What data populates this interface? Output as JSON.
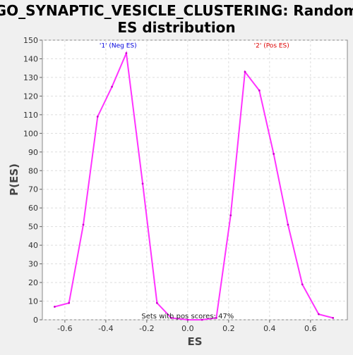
{
  "chart_data": {
    "type": "line",
    "title_lines": [
      "GO_SYNAPTIC_VESICLE_CLUSTERING: Random",
      "ES distribution"
    ],
    "xlabel": "ES",
    "ylabel": "P(ES)",
    "xlim": [
      -0.71,
      0.78
    ],
    "ylim": [
      0,
      150
    ],
    "xticks": [
      -0.6,
      -0.4,
      -0.2,
      0.0,
      0.2,
      0.4,
      0.6
    ],
    "xtick_labels": [
      "-0.6",
      "-0.4",
      "-0.2",
      "0.0",
      "0.2",
      "0.4",
      "0.6"
    ],
    "yticks": [
      0,
      10,
      20,
      30,
      40,
      50,
      60,
      70,
      80,
      90,
      100,
      110,
      120,
      130,
      140,
      150
    ],
    "ytick_labels": [
      "0",
      "10",
      "20",
      "30",
      "40",
      "50",
      "60",
      "70",
      "80",
      "90",
      "100",
      "110",
      "120",
      "130",
      "140",
      "150"
    ],
    "grid": true,
    "series": [
      {
        "color": "#ff33ff",
        "x": [
          -0.65,
          -0.58,
          -0.51,
          -0.44,
          -0.37,
          -0.3,
          -0.22,
          -0.15,
          -0.08,
          0.0,
          0.07,
          0.14,
          0.21,
          0.28,
          0.35,
          0.42,
          0.49,
          0.56,
          0.64,
          0.71
        ],
        "y": [
          7,
          9,
          51,
          109,
          125,
          143,
          73,
          9,
          1,
          0,
          0,
          1,
          56,
          133,
          123,
          89,
          51,
          19,
          3,
          1
        ]
      }
    ],
    "annotations": [
      {
        "text": "'1' (Neg ES)",
        "x": -0.34,
        "y": 146,
        "color": "#0000dd"
      },
      {
        "text": "'2' (Pos ES)",
        "x": 0.41,
        "y": 146,
        "color": "#dd0000"
      }
    ],
    "footnote": "Sets with pos scores: 47%"
  }
}
